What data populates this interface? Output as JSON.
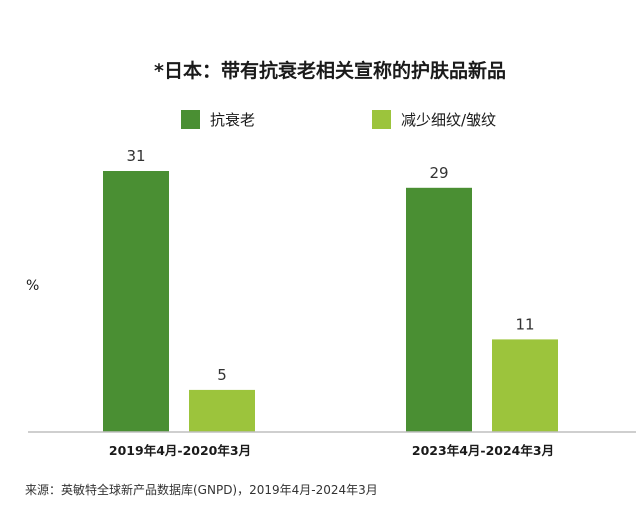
{
  "chart_data": {
    "type": "bar",
    "title": "*日本：带有抗衰老相关宣称的护肤品新品",
    "ylabel": "%",
    "xlabel": "",
    "categories": [
      "2019年4月-2020年3月",
      "2023年4月-2024年3月"
    ],
    "series": [
      {
        "name": "抗衰老",
        "values": [
          31,
          29
        ],
        "color": "#4a8f33"
      },
      {
        "name": "减少细纹/皱纹",
        "values": [
          5,
          11
        ],
        "color": "#9cc43c"
      }
    ],
    "ylim": [
      0,
      31
    ],
    "grid": false,
    "legend_position": "top",
    "source": "来源：英敏特全球新产品数据库(GNPD)，2019年4月-2024年3月",
    "axis_color": "#bfbfbf"
  }
}
